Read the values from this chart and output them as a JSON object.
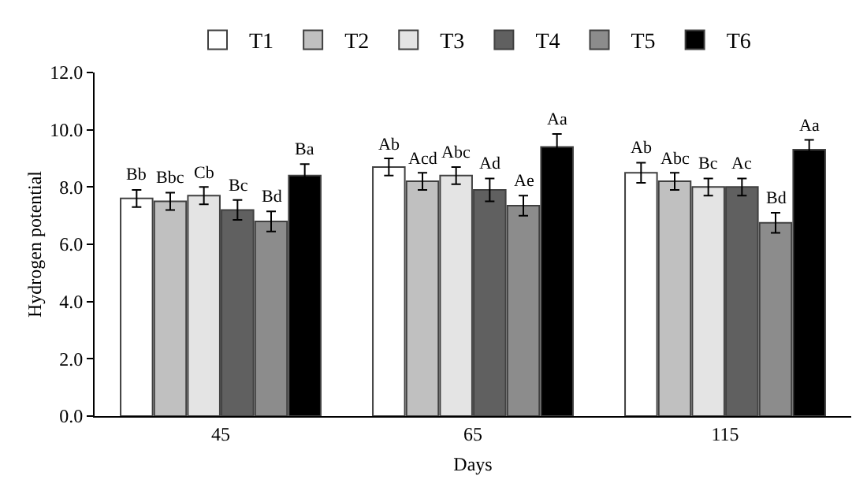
{
  "chart_data": {
    "type": "bar",
    "xlabel": "Days",
    "ylabel": "Hydrogen potential",
    "categories": [
      "45",
      "65",
      "115"
    ],
    "series": [
      {
        "name": "T1",
        "color": "#ffffff",
        "values": [
          7.6,
          8.7,
          8.5
        ],
        "errors": [
          0.3,
          0.3,
          0.35
        ],
        "value_labels": [
          "Bb",
          "Ab",
          "Ab"
        ]
      },
      {
        "name": "T2",
        "color": "#c0c0c0",
        "values": [
          7.5,
          8.2,
          8.2
        ],
        "errors": [
          0.3,
          0.3,
          0.3
        ],
        "value_labels": [
          "Bbc",
          "Acd",
          "Abc"
        ]
      },
      {
        "name": "T3",
        "color": "#e4e4e4",
        "values": [
          7.7,
          8.4,
          8.0
        ],
        "errors": [
          0.3,
          0.3,
          0.3
        ],
        "value_labels": [
          "Cb",
          "Abc",
          "Bc"
        ]
      },
      {
        "name": "T4",
        "color": "#606060",
        "values": [
          7.2,
          7.9,
          8.0
        ],
        "errors": [
          0.35,
          0.4,
          0.3
        ],
        "value_labels": [
          "Bc",
          "Ad",
          "Ac"
        ]
      },
      {
        "name": "T5",
        "color": "#8c8c8c",
        "values": [
          6.8,
          7.35,
          6.75
        ],
        "errors": [
          0.35,
          0.35,
          0.35
        ],
        "value_labels": [
          "Bd",
          "Ae",
          "Bd"
        ]
      },
      {
        "name": "T6",
        "color": "#000000",
        "values": [
          8.4,
          9.4,
          9.3
        ],
        "errors": [
          0.4,
          0.45,
          0.35
        ],
        "value_labels": [
          "Ba",
          "Aa",
          "Aa"
        ]
      }
    ],
    "ylim": [
      0,
      12
    ],
    "yticks": [
      {
        "value": 0,
        "label": "0.0"
      },
      {
        "value": 2,
        "label": "2.0"
      },
      {
        "value": 4,
        "label": "4.0"
      },
      {
        "value": 6,
        "label": "6.0"
      },
      {
        "value": 8,
        "label": "8.0"
      },
      {
        "value": 10,
        "label": "10.0"
      },
      {
        "value": 12,
        "label": "12.0"
      }
    ],
    "grid": false,
    "legend": "top"
  }
}
